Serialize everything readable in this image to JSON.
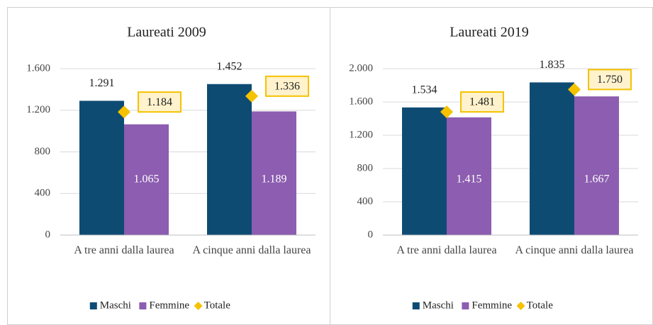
{
  "chart_data": [
    {
      "type": "bar",
      "title": "Laureati 2009",
      "categories": [
        "A tre anni dalla laurea",
        "A cinque anni dalla laurea"
      ],
      "series": [
        {
          "name": "Maschi",
          "color": "#0e4b73",
          "values": [
            1291,
            1452
          ],
          "value_labels": [
            "1.291",
            "1.452"
          ]
        },
        {
          "name": "Femmine",
          "color": "#8c5db0",
          "values": [
            1065,
            1189
          ],
          "value_labels": [
            "1.065",
            "1.189"
          ]
        },
        {
          "name": "Totale",
          "color": "#f5c200",
          "values": [
            1184,
            1336
          ],
          "value_labels": [
            "1.184",
            "1.336"
          ],
          "marker": "diamond"
        }
      ],
      "ylim": [
        0,
        1600
      ],
      "yticks": [
        0,
        400,
        800,
        {
          "value": 1200,
          "label": "1.200"
        },
        {
          "value": 1600,
          "label": "1.600"
        }
      ],
      "legend": "bottom"
    },
    {
      "type": "bar",
      "title": "Laureati 2019",
      "categories": [
        "A tre anni dalla laurea",
        "A cinque anni dalla laurea"
      ],
      "series": [
        {
          "name": "Maschi",
          "color": "#0e4b73",
          "values": [
            1534,
            1835
          ],
          "value_labels": [
            "1.534",
            "1.835"
          ]
        },
        {
          "name": "Femmine",
          "color": "#8c5db0",
          "values": [
            1415,
            1667
          ],
          "value_labels": [
            "1.415",
            "1.667"
          ]
        },
        {
          "name": "Totale",
          "color": "#f5c200",
          "values": [
            1481,
            1750
          ],
          "value_labels": [
            "1.481",
            "1.750"
          ],
          "marker": "diamond"
        }
      ],
      "ylim": [
        0,
        2000
      ],
      "yticks": [
        0,
        400,
        800,
        {
          "value": 1200,
          "label": "1.200"
        },
        {
          "value": 1600,
          "label": "1.600"
        },
        {
          "value": 2000,
          "label": "2.000"
        }
      ],
      "legend": "bottom"
    }
  ]
}
